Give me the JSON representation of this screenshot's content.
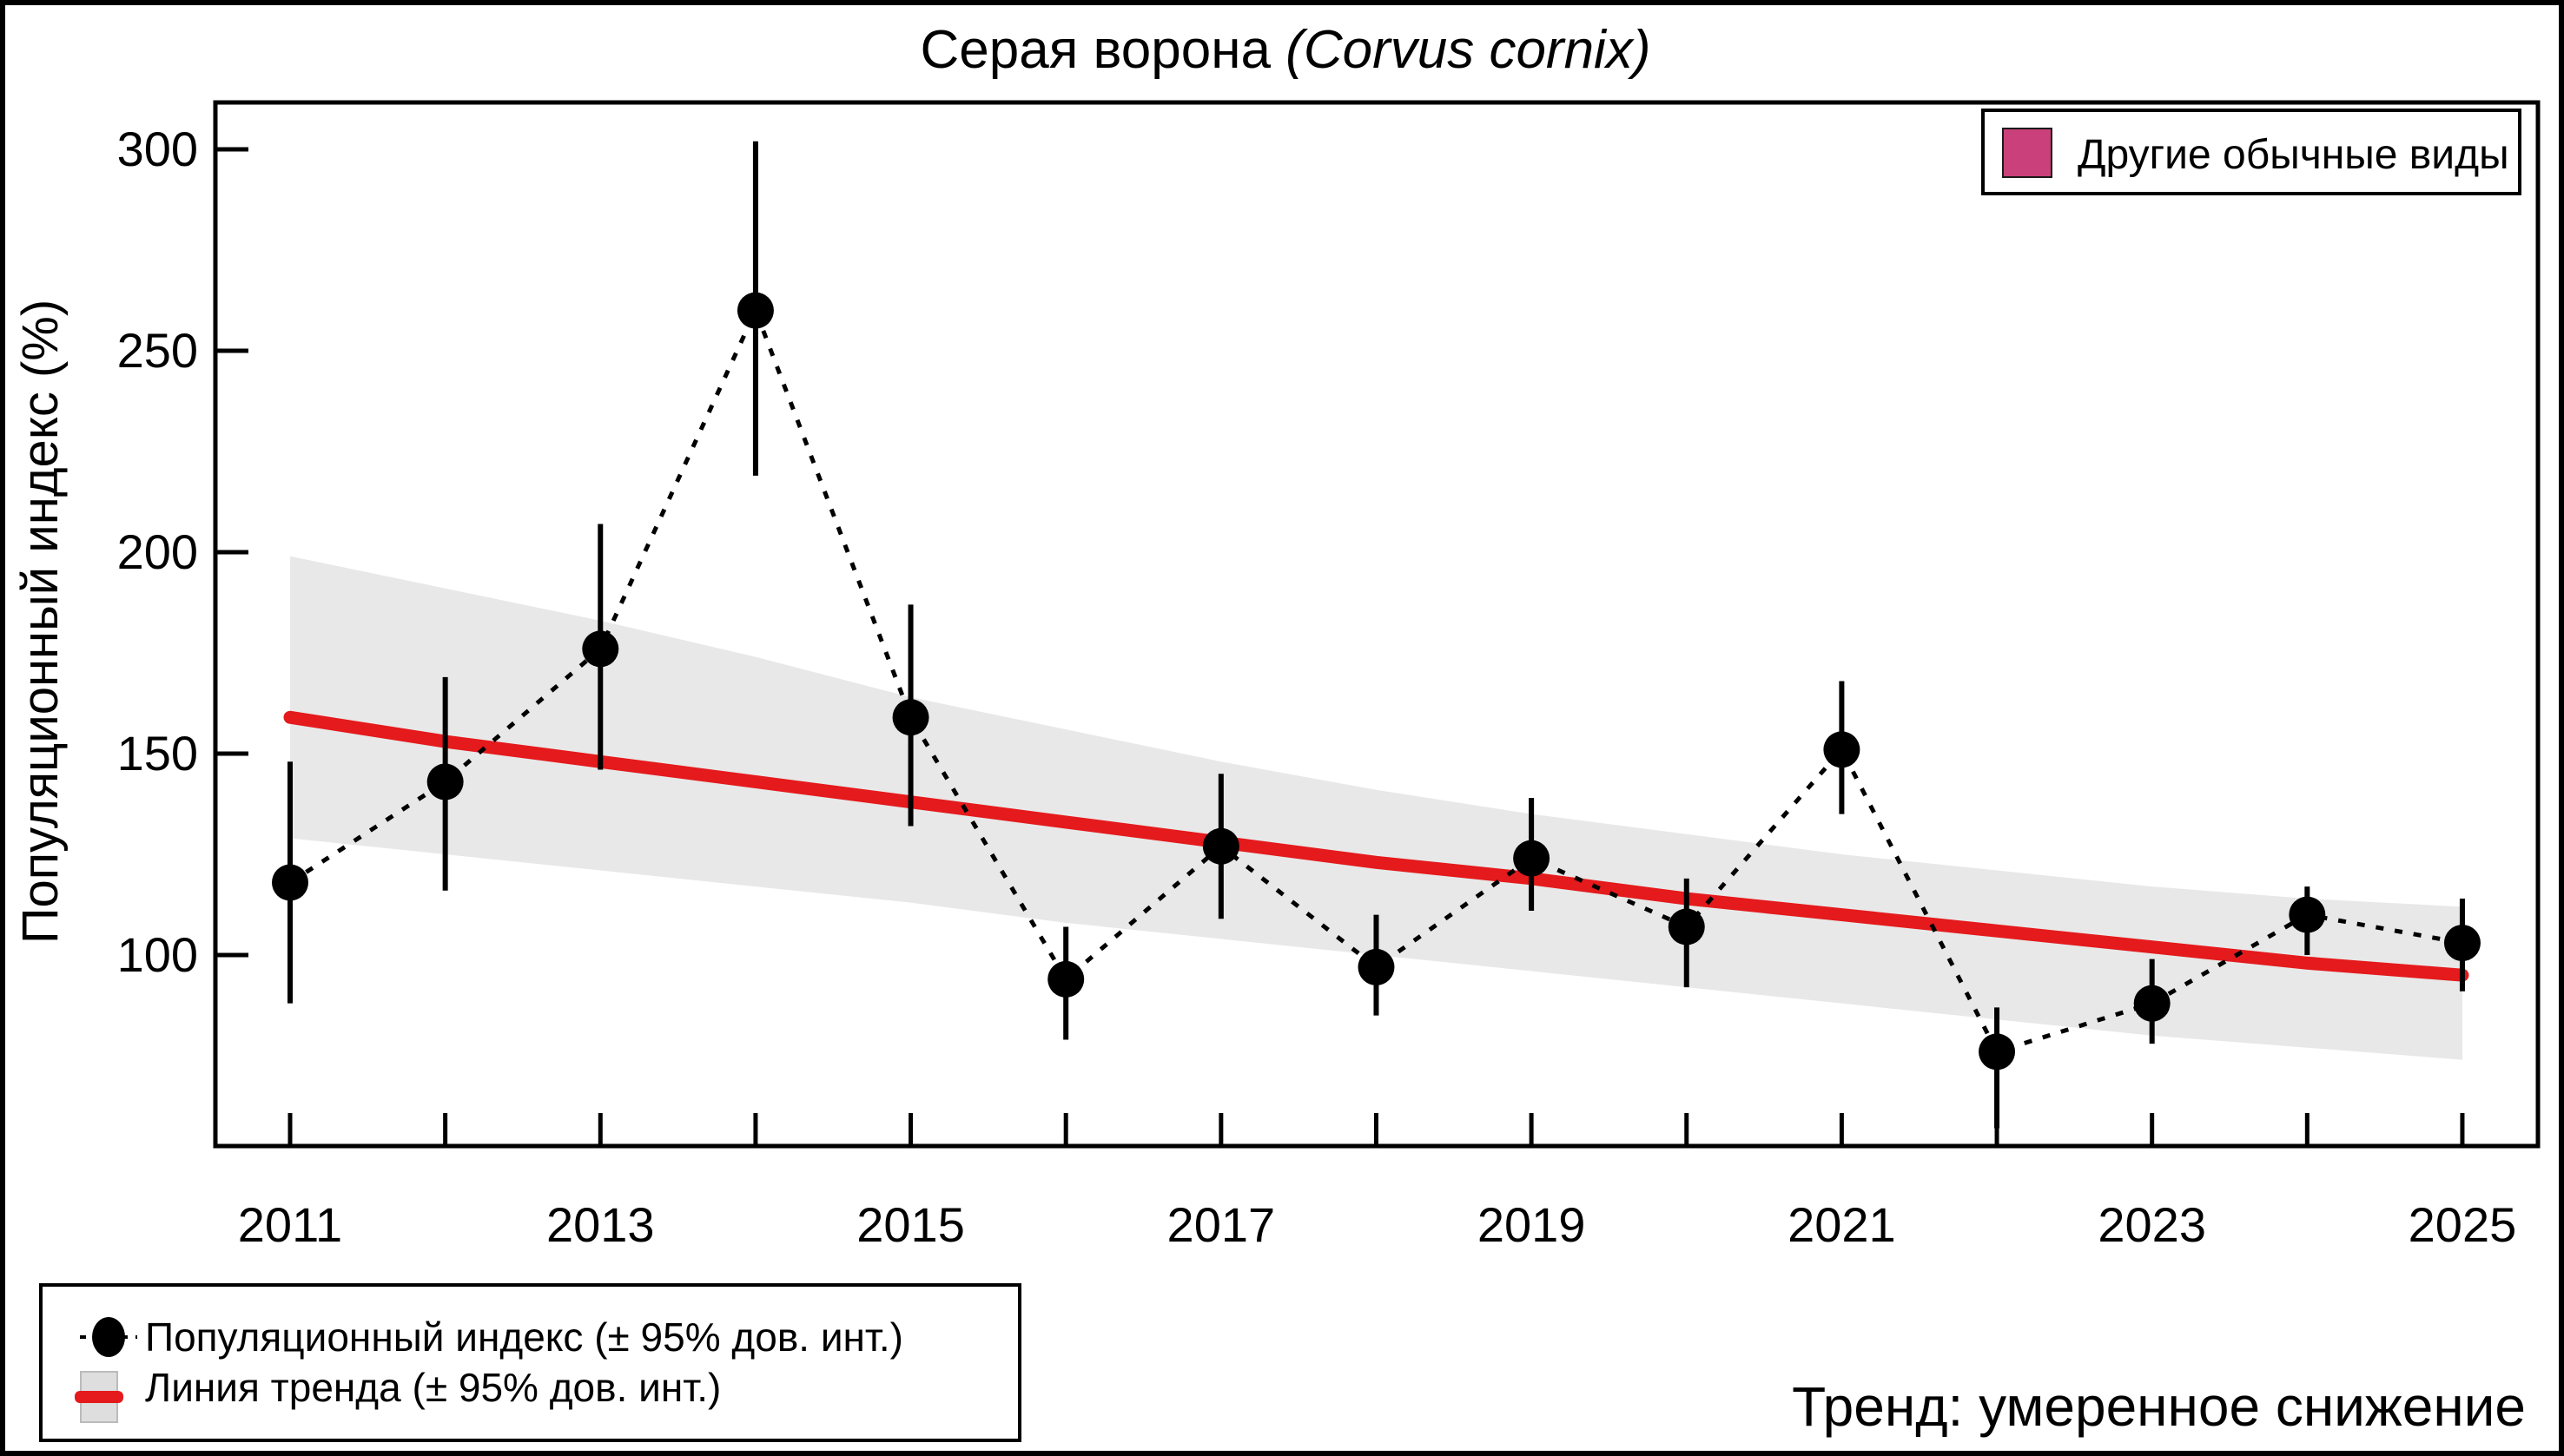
{
  "title": {
    "main": "Серая ворона ",
    "paren_open": "(",
    "species": "Corvus cornix",
    "paren_close": ")"
  },
  "axes": {
    "y_label": "Популяционный индекс (%)",
    "y_ticks": [
      100,
      150,
      200,
      250,
      300
    ],
    "x_ticks": [
      2011,
      2012,
      2013,
      2014,
      2015,
      2016,
      2017,
      2018,
      2019,
      2020,
      2021,
      2022,
      2023,
      2024,
      2025
    ],
    "x_labels": [
      2011,
      2013,
      2015,
      2017,
      2019,
      2021,
      2023,
      2025
    ]
  },
  "legend_top_right": {
    "label": "Другие обычные виды",
    "swatch_color": "#C9407A"
  },
  "legend_bottom": {
    "item1_label": "Популяционный индекс (± 95% дов. инт.)",
    "item2_label": "Линия тренда (± 95% дов. инт.)"
  },
  "trend_note": {
    "text": "Тренд: умеренное снижение",
    "color": "#E40000"
  },
  "colors": {
    "point": "#000000",
    "error_bar": "#000000",
    "dotted_line": "#000000",
    "trend_line": "#E41A1C",
    "band": "#E8E8E8",
    "swatch_pink": "#C9407A",
    "note_red": "#E40000",
    "frame": "#000000",
    "background": "#FFFFFF"
  },
  "chart_data": {
    "type": "line",
    "x": [
      2011,
      2012,
      2013,
      2014,
      2015,
      2016,
      2017,
      2018,
      2019,
      2020,
      2021,
      2022,
      2023,
      2024,
      2025
    ],
    "series": [
      {
        "name": "Популяционный индекс (± 95% дов. инт.)",
        "values": [
          118,
          143,
          176,
          260,
          159,
          94,
          127,
          97,
          124,
          107,
          151,
          76,
          88,
          110,
          103
        ],
        "ci_low": [
          88,
          116,
          146,
          219,
          132,
          79,
          109,
          85,
          111,
          92,
          135,
          57,
          78,
          100,
          91
        ],
        "ci_high": [
          148,
          169,
          207,
          302,
          187,
          107,
          145,
          110,
          139,
          119,
          168,
          87,
          99,
          117,
          114
        ],
        "style": "black dots with dotted connector and vertical error bars"
      },
      {
        "name": "Линия тренда (± 95% дов. инт.)",
        "values": [
          159,
          153,
          148,
          143,
          138,
          133,
          128,
          123,
          119,
          114,
          110,
          106,
          102,
          98,
          95
        ],
        "band_low": [
          129,
          125,
          121,
          117,
          113,
          108,
          104,
          100,
          96,
          92,
          88,
          84,
          80,
          77,
          74
        ],
        "band_high": [
          199,
          191,
          183,
          174,
          164,
          156,
          148,
          141,
          135,
          130,
          125,
          121,
          117,
          114,
          112
        ],
        "style": "thick red line with gray 95% confidence band"
      }
    ],
    "title": "Серая ворона (Corvus cornix)",
    "xlabel": "",
    "ylabel": "Популяционный индекс (%)",
    "ylim": [
      53,
      313
    ],
    "xlim": [
      2010.5,
      2025.5
    ],
    "grid": false,
    "legend_position": "outer bottom-left; secondary legend top-right inside plot"
  }
}
